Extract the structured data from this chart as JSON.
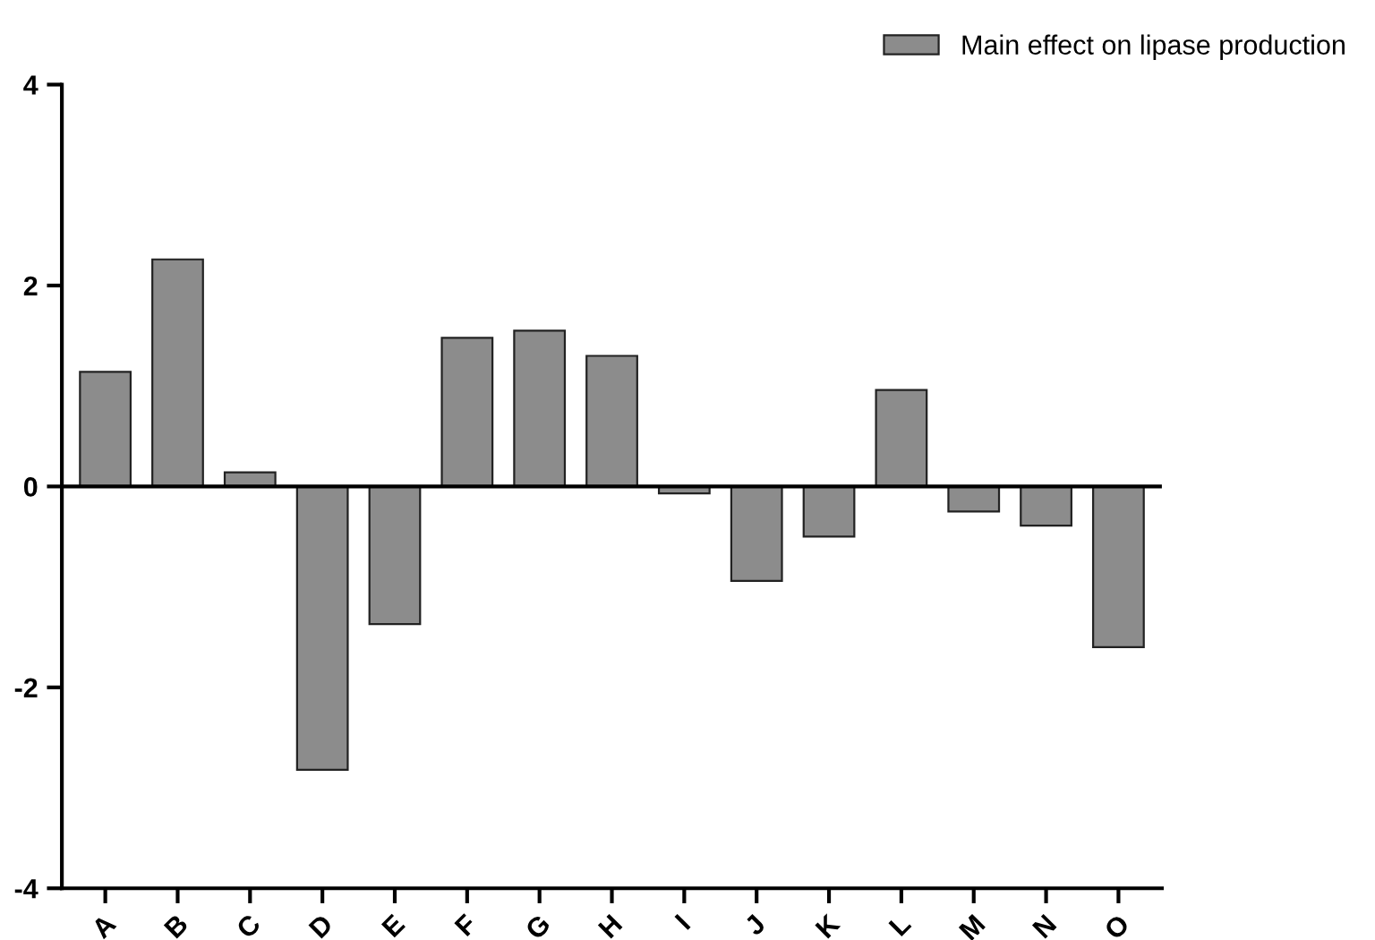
{
  "chart_data": {
    "type": "bar",
    "categories": [
      "A",
      "B",
      "C",
      "D",
      "E",
      "F",
      "G",
      "H",
      "I",
      "J",
      "K",
      "L",
      "M",
      "N",
      "O"
    ],
    "series": [
      {
        "name": "Main effect on lipase production",
        "color": "#8c8c8c",
        "values": [
          1.14,
          2.26,
          0.14,
          -2.82,
          -1.37,
          1.48,
          1.55,
          1.3,
          -0.07,
          -0.94,
          -0.5,
          0.96,
          -0.25,
          -0.39,
          -1.6
        ]
      }
    ],
    "ylim": [
      -4,
      4
    ],
    "yticks": [
      -4,
      -2,
      0,
      2,
      4
    ],
    "ref_lines": [
      {
        "axis": "y",
        "value": 0,
        "color": "#000000"
      }
    ],
    "legend": "top right",
    "grid": false
  }
}
